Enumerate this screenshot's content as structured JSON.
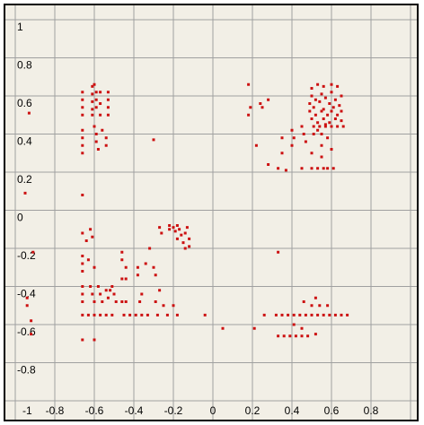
{
  "chart_data": {
    "type": "scatter",
    "title": "",
    "xlabel": "",
    "ylabel": "",
    "xlim": [
      -1,
      1
    ],
    "ylim": [
      -1,
      1
    ],
    "grid": true,
    "x_tick_labels": [
      "-1",
      "-0.8",
      "-0.6",
      "-0.4",
      "-0.2",
      "0",
      "0.2",
      "0.4",
      "0.6",
      "0.8"
    ],
    "y_tick_labels": [
      "1",
      "0.8",
      "0.6",
      "0.4",
      "0.2",
      "0",
      "-0.2",
      "-0.4",
      "-0.6",
      "-0.8"
    ],
    "point_color": "#cc1111",
    "series": [
      {
        "points": [
          [
            -0.93,
            0.51
          ],
          [
            -0.95,
            0.09
          ],
          [
            -0.66,
            0.62
          ],
          [
            -0.66,
            0.58
          ],
          [
            -0.66,
            0.54
          ],
          [
            -0.66,
            0.5
          ],
          [
            -0.61,
            0.65
          ],
          [
            -0.61,
            0.61
          ],
          [
            -0.61,
            0.57
          ],
          [
            -0.61,
            0.53
          ],
          [
            -0.61,
            0.5
          ],
          [
            -0.6,
            0.66
          ],
          [
            -0.59,
            0.62
          ],
          [
            -0.59,
            0.58
          ],
          [
            -0.59,
            0.54
          ],
          [
            -0.57,
            0.62
          ],
          [
            -0.57,
            0.56
          ],
          [
            -0.57,
            0.5
          ],
          [
            -0.53,
            0.62
          ],
          [
            -0.53,
            0.58
          ],
          [
            -0.53,
            0.54
          ],
          [
            -0.53,
            0.5
          ],
          [
            -0.66,
            0.42
          ],
          [
            -0.66,
            0.38
          ],
          [
            -0.66,
            0.34
          ],
          [
            -0.66,
            0.3
          ],
          [
            -0.6,
            0.44
          ],
          [
            -0.59,
            0.4
          ],
          [
            -0.59,
            0.36
          ],
          [
            -0.58,
            0.32
          ],
          [
            -0.56,
            0.42
          ],
          [
            -0.54,
            0.38
          ],
          [
            -0.54,
            0.34
          ],
          [
            -0.3,
            0.37
          ],
          [
            -0.66,
            0.08
          ],
          [
            -0.66,
            -0.24
          ],
          [
            -0.66,
            -0.28
          ],
          [
            -0.91,
            -0.22
          ],
          [
            -0.94,
            -0.46
          ],
          [
            -0.94,
            -0.5
          ],
          [
            -0.92,
            -0.58
          ],
          [
            -0.92,
            -0.65
          ],
          [
            -0.66,
            -0.12
          ],
          [
            -0.64,
            -0.16
          ],
          [
            -0.62,
            -0.1
          ],
          [
            -0.61,
            -0.14
          ],
          [
            -0.63,
            -0.26
          ],
          [
            -0.6,
            -0.3
          ],
          [
            -0.66,
            -0.32
          ],
          [
            -0.66,
            -0.4
          ],
          [
            -0.66,
            -0.44
          ],
          [
            -0.66,
            -0.48
          ],
          [
            -0.62,
            -0.4
          ],
          [
            -0.61,
            -0.44
          ],
          [
            -0.6,
            -0.48
          ],
          [
            -0.58,
            -0.4
          ],
          [
            -0.57,
            -0.44
          ],
          [
            -0.56,
            -0.48
          ],
          [
            -0.54,
            -0.42
          ],
          [
            -0.53,
            -0.46
          ],
          [
            -0.52,
            -0.42
          ],
          [
            -0.51,
            -0.4
          ],
          [
            -0.5,
            -0.44
          ],
          [
            -0.49,
            -0.48
          ],
          [
            -0.6,
            -0.55
          ],
          [
            -0.57,
            -0.55
          ],
          [
            -0.54,
            -0.55
          ],
          [
            -0.51,
            -0.55
          ],
          [
            -0.66,
            -0.55
          ],
          [
            -0.63,
            -0.55
          ],
          [
            -0.66,
            -0.68
          ],
          [
            -0.6,
            -0.68
          ],
          [
            -0.46,
            -0.22
          ],
          [
            -0.46,
            -0.26
          ],
          [
            -0.44,
            -0.3
          ],
          [
            -0.46,
            -0.36
          ],
          [
            -0.44,
            -0.36
          ],
          [
            -0.46,
            -0.48
          ],
          [
            -0.44,
            -0.48
          ],
          [
            -0.45,
            -0.55
          ],
          [
            -0.42,
            -0.55
          ],
          [
            -0.39,
            -0.55
          ],
          [
            -0.38,
            -0.3
          ],
          [
            -0.38,
            -0.34
          ],
          [
            -0.37,
            -0.48
          ],
          [
            -0.36,
            -0.55
          ],
          [
            -0.33,
            -0.55
          ],
          [
            -0.3,
            -0.3
          ],
          [
            -0.29,
            -0.34
          ],
          [
            -0.29,
            -0.48
          ],
          [
            -0.28,
            -0.55
          ],
          [
            -0.27,
            -0.42
          ],
          [
            -0.25,
            -0.5
          ],
          [
            -0.23,
            -0.55
          ],
          [
            -0.2,
            -0.5
          ],
          [
            -0.18,
            -0.55
          ],
          [
            -0.22,
            -0.08
          ],
          [
            -0.22,
            -0.1
          ],
          [
            -0.2,
            -0.09
          ],
          [
            -0.19,
            -0.11
          ],
          [
            -0.18,
            -0.08
          ],
          [
            -0.17,
            -0.1
          ],
          [
            -0.16,
            -0.13
          ],
          [
            -0.14,
            -0.12
          ],
          [
            -0.13,
            -0.09
          ],
          [
            -0.12,
            -0.15
          ],
          [
            -0.12,
            -0.19
          ],
          [
            -0.15,
            -0.17
          ],
          [
            -0.18,
            -0.15
          ],
          [
            -0.14,
            -0.2
          ],
          [
            -0.27,
            -0.09
          ],
          [
            -0.26,
            -0.12
          ],
          [
            -0.32,
            -0.2
          ],
          [
            -0.34,
            -0.28
          ],
          [
            -0.36,
            -0.44
          ],
          [
            -0.04,
            -0.55
          ],
          [
            0.05,
            -0.62
          ],
          [
            0.18,
            0.66
          ],
          [
            0.18,
            0.5
          ],
          [
            0.19,
            0.54
          ],
          [
            0.24,
            0.56
          ],
          [
            0.25,
            0.54
          ],
          [
            0.28,
            0.58
          ],
          [
            0.22,
            0.34
          ],
          [
            0.28,
            0.24
          ],
          [
            0.35,
            0.3
          ],
          [
            0.35,
            0.38
          ],
          [
            0.4,
            0.42
          ],
          [
            0.41,
            0.38
          ],
          [
            0.4,
            0.34
          ],
          [
            0.45,
            0.44
          ],
          [
            0.46,
            0.4
          ],
          [
            0.47,
            0.36
          ],
          [
            0.51,
            0.4
          ],
          [
            0.53,
            0.42
          ],
          [
            0.55,
            0.4
          ],
          [
            0.57,
            0.44
          ],
          [
            0.58,
            0.38
          ],
          [
            0.5,
            0.3
          ],
          [
            0.55,
            0.34
          ],
          [
            0.55,
            0.28
          ],
          [
            0.6,
            0.32
          ],
          [
            0.45,
            0.22
          ],
          [
            0.5,
            0.22
          ],
          [
            0.53,
            0.22
          ],
          [
            0.56,
            0.22
          ],
          [
            0.58,
            0.22
          ],
          [
            0.61,
            0.22
          ],
          [
            0.37,
            0.21
          ],
          [
            0.33,
            0.22
          ],
          [
            0.5,
            0.64
          ],
          [
            0.53,
            0.66
          ],
          [
            0.56,
            0.65
          ],
          [
            0.6,
            0.66
          ],
          [
            0.63,
            0.65
          ],
          [
            0.5,
            0.6
          ],
          [
            0.52,
            0.58
          ],
          [
            0.55,
            0.61
          ],
          [
            0.57,
            0.59
          ],
          [
            0.6,
            0.62
          ],
          [
            0.62,
            0.58
          ],
          [
            0.65,
            0.6
          ],
          [
            0.49,
            0.56
          ],
          [
            0.51,
            0.54
          ],
          [
            0.54,
            0.57
          ],
          [
            0.56,
            0.53
          ],
          [
            0.59,
            0.56
          ],
          [
            0.61,
            0.54
          ],
          [
            0.64,
            0.55
          ],
          [
            0.49,
            0.52
          ],
          [
            0.52,
            0.5
          ],
          [
            0.55,
            0.52
          ],
          [
            0.58,
            0.5
          ],
          [
            0.6,
            0.52
          ],
          [
            0.63,
            0.5
          ],
          [
            0.65,
            0.52
          ],
          [
            0.5,
            0.48
          ],
          [
            0.53,
            0.46
          ],
          [
            0.56,
            0.48
          ],
          [
            0.59,
            0.46
          ],
          [
            0.62,
            0.48
          ],
          [
            0.65,
            0.47
          ],
          [
            0.51,
            0.44
          ],
          [
            0.54,
            0.44
          ],
          [
            0.57,
            0.45
          ],
          [
            0.6,
            0.44
          ],
          [
            0.63,
            0.44
          ],
          [
            0.66,
            0.44
          ],
          [
            0.33,
            -0.22
          ],
          [
            0.32,
            -0.55
          ],
          [
            0.35,
            -0.55
          ],
          [
            0.38,
            -0.55
          ],
          [
            0.41,
            -0.55
          ],
          [
            0.44,
            -0.55
          ],
          [
            0.47,
            -0.55
          ],
          [
            0.5,
            -0.55
          ],
          [
            0.53,
            -0.55
          ],
          [
            0.56,
            -0.55
          ],
          [
            0.59,
            -0.55
          ],
          [
            0.62,
            -0.55
          ],
          [
            0.65,
            -0.55
          ],
          [
            0.68,
            -0.55
          ],
          [
            0.26,
            -0.55
          ],
          [
            0.21,
            -0.62
          ],
          [
            0.5,
            -0.5
          ],
          [
            0.52,
            -0.46
          ],
          [
            0.54,
            -0.5
          ],
          [
            0.46,
            -0.48
          ],
          [
            0.58,
            -0.5
          ],
          [
            0.33,
            -0.66
          ],
          [
            0.36,
            -0.66
          ],
          [
            0.39,
            -0.66
          ],
          [
            0.42,
            -0.66
          ],
          [
            0.45,
            -0.66
          ],
          [
            0.48,
            -0.66
          ],
          [
            0.41,
            -0.6
          ],
          [
            0.45,
            -0.62
          ],
          [
            0.52,
            -0.65
          ]
        ]
      }
    ]
  }
}
